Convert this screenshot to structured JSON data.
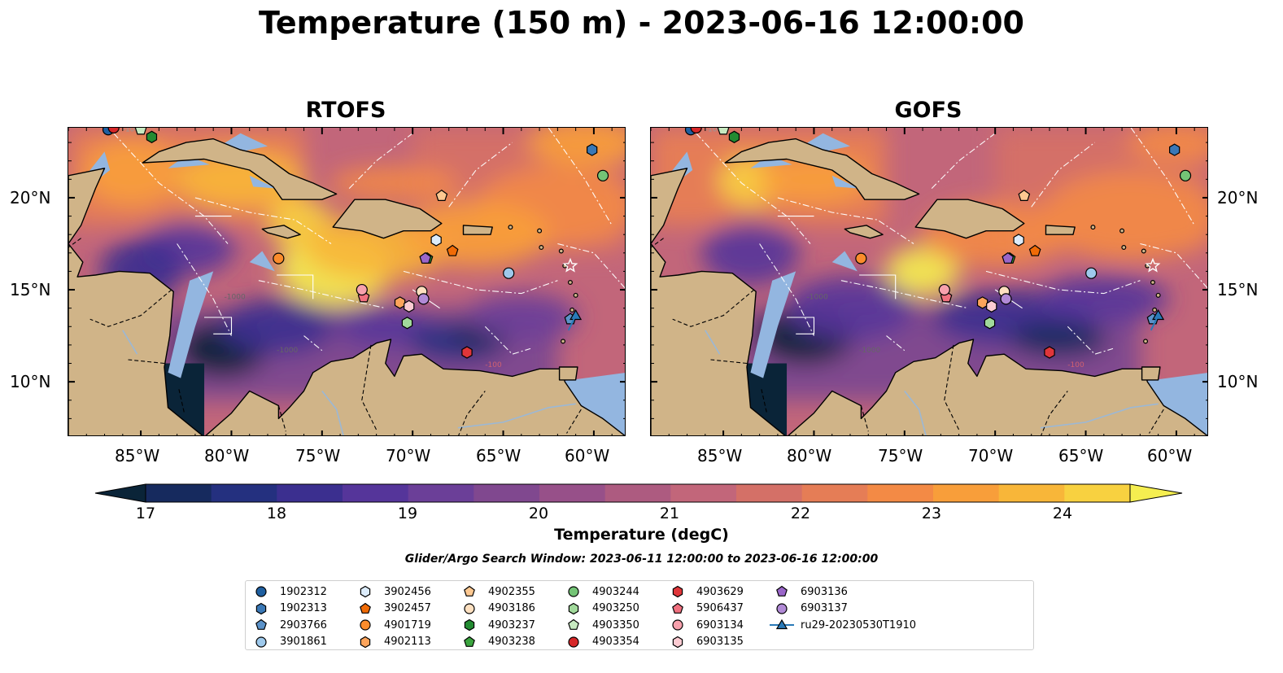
{
  "title": "Temperature (150 m) - 2023-06-16 12:00:00",
  "panels": [
    {
      "title": "RTOFS"
    },
    {
      "title": "GOFS"
    }
  ],
  "map_labels": {
    "lon_ticks": [
      "85°W",
      "80°W",
      "75°W",
      "70°W",
      "65°W",
      "60°W"
    ],
    "lat_ticks": [
      "20°N",
      "15°N",
      "10°N"
    ],
    "contour_labels": [
      "-100",
      "-1000"
    ]
  },
  "colorbar": {
    "label": "Temperature (degC)",
    "ticks": [
      "17",
      "18",
      "19",
      "20",
      "21",
      "22",
      "23",
      "24"
    ],
    "min": 17,
    "max": 24.5,
    "colors": [
      "#0a2438",
      "#162a5e",
      "#24307f",
      "#3b2f8f",
      "#55359a",
      "#6b3f98",
      "#80488f",
      "#975089",
      "#ad5b80",
      "#c2667a",
      "#d47067",
      "#e57d56",
      "#f38a45",
      "#f89e3a",
      "#f8b639",
      "#f8d140",
      "#f5ee50"
    ]
  },
  "search_window": "Glider/Argo Search Window: 2023-06-11 12:00:00 to 2023-06-16 12:00:00",
  "floats": [
    {
      "id": "1902312",
      "shape": "circle",
      "color": "#1f5fa0",
      "lon": -86.8,
      "lat": 23.7
    },
    {
      "id": "1902313",
      "shape": "hexagon",
      "color": "#3a78b6",
      "lon": -60.1,
      "lat": 22.6
    },
    {
      "id": "2903766",
      "shape": "pentagon",
      "color": "#5b92c9",
      "lon": -61.3,
      "lat": 13.4
    },
    {
      "id": "3901861",
      "shape": "circle",
      "color": "#9ec9ec",
      "lon": -64.7,
      "lat": 15.9
    },
    {
      "id": "3902456",
      "shape": "hexagon",
      "color": "#dcecfb",
      "lon": -68.7,
      "lat": 17.7
    },
    {
      "id": "3902457",
      "shape": "pentagon",
      "color": "#f06b06",
      "lon": -67.8,
      "lat": 17.1
    },
    {
      "id": "4901719",
      "shape": "circle",
      "color": "#fb8c2c",
      "lon": -77.4,
      "lat": 16.7
    },
    {
      "id": "4902113",
      "shape": "hexagon",
      "color": "#fda45b",
      "lon": -70.7,
      "lat": 14.3
    },
    {
      "id": "4902355",
      "shape": "pentagon",
      "color": "#fdc891",
      "lon": -68.4,
      "lat": 20.1
    },
    {
      "id": "4903186",
      "shape": "circle",
      "color": "#fee0c0",
      "lon": -69.5,
      "lat": 14.9
    },
    {
      "id": "4903237",
      "shape": "hexagon",
      "color": "#238b32",
      "lon": -84.4,
      "lat": 23.3
    },
    {
      "id": "4903238",
      "shape": "pentagon",
      "color": "#3aa43e",
      "lon": -69.2,
      "lat": 16.7
    },
    {
      "id": "4903244",
      "shape": "circle",
      "color": "#74c476",
      "lon": -59.5,
      "lat": 21.2
    },
    {
      "id": "4903250",
      "shape": "hexagon",
      "color": "#a1d99b",
      "lon": -70.3,
      "lat": 13.2
    },
    {
      "id": "4903350",
      "shape": "pentagon",
      "color": "#c7e9c0",
      "lon": -85.0,
      "lat": 23.7
    },
    {
      "id": "4903354",
      "shape": "circle",
      "color": "#d62728",
      "lon": -86.5,
      "lat": 23.8
    },
    {
      "id": "4903629",
      "shape": "hexagon",
      "color": "#e0363a",
      "lon": -67.0,
      "lat": 11.6
    },
    {
      "id": "5906437",
      "shape": "pentagon",
      "color": "#f0707f",
      "lon": -72.7,
      "lat": 14.6
    },
    {
      "id": "6903134",
      "shape": "circle",
      "color": "#f7a1ad",
      "lon": -72.8,
      "lat": 15.0
    },
    {
      "id": "6903135",
      "shape": "hexagon",
      "color": "#fccbd2",
      "lon": -70.2,
      "lat": 14.1
    },
    {
      "id": "6903136",
      "shape": "pentagon",
      "color": "#9a66c9",
      "lon": -69.3,
      "lat": 16.7
    },
    {
      "id": "6903137",
      "shape": "circle",
      "color": "#b18ad6",
      "lon": -69.4,
      "lat": 14.5
    },
    {
      "id": "ru29-20230530T1910",
      "shape": "triangle",
      "color": "#2a7ab8",
      "lon": -61.0,
      "lat": 13.6
    }
  ]
}
